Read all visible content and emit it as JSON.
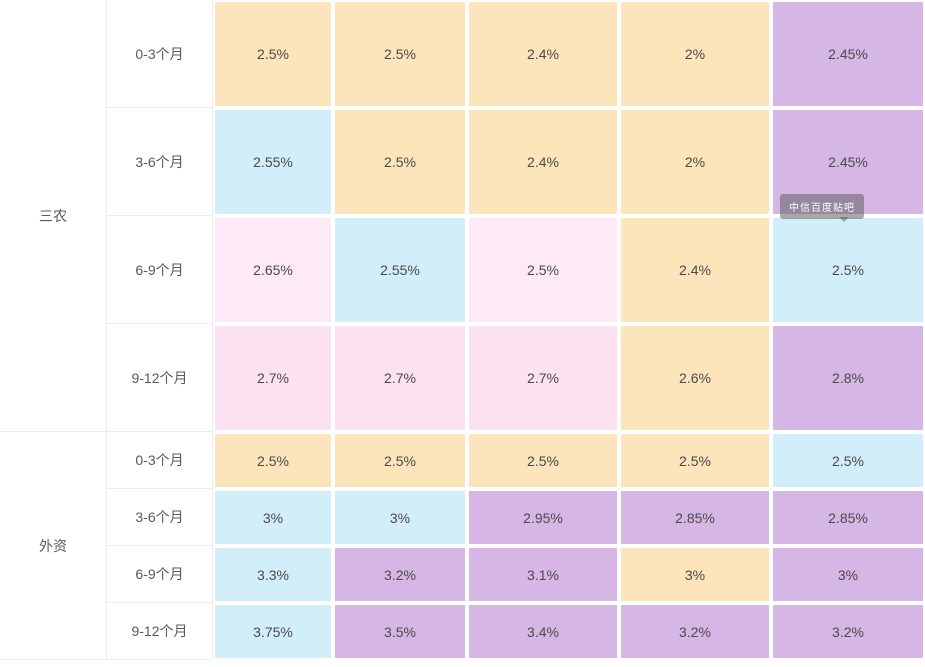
{
  "colors": {
    "orange": "#fce4bb",
    "blue": "#d2eefa",
    "pink": "#fce2f1",
    "pinkLight": "#fdeaf6",
    "purple": "#d5b6e4"
  },
  "watermark": {
    "text": "中信百度贴吧"
  },
  "chart_data": {
    "type": "table",
    "layout": "heatmap-style rate table, 2 row groups x 4 periods x 5 unlabeled columns",
    "groups": [
      {
        "label": "三农",
        "rows": [
          {
            "period": "0-3个月",
            "cells": [
              {
                "value": "2.5%",
                "color": "orange"
              },
              {
                "value": "2.5%",
                "color": "orange"
              },
              {
                "value": "2.4%",
                "color": "orange"
              },
              {
                "value": "2%",
                "color": "orange"
              },
              {
                "value": "2.45%",
                "color": "purple"
              }
            ]
          },
          {
            "period": "3-6个月",
            "cells": [
              {
                "value": "2.55%",
                "color": "blue"
              },
              {
                "value": "2.5%",
                "color": "orange"
              },
              {
                "value": "2.4%",
                "color": "orange"
              },
              {
                "value": "2%",
                "color": "orange"
              },
              {
                "value": "2.45%",
                "color": "purple"
              }
            ]
          },
          {
            "period": "6-9个月",
            "cells": [
              {
                "value": "2.65%",
                "color": "pinkLight"
              },
              {
                "value": "2.55%",
                "color": "blue"
              },
              {
                "value": "2.5%",
                "color": "pinkLight"
              },
              {
                "value": "2.4%",
                "color": "orange"
              },
              {
                "value": "2.5%",
                "color": "blue"
              }
            ]
          },
          {
            "period": "9-12个月",
            "cells": [
              {
                "value": "2.7%",
                "color": "pink"
              },
              {
                "value": "2.7%",
                "color": "pink"
              },
              {
                "value": "2.7%",
                "color": "pink"
              },
              {
                "value": "2.6%",
                "color": "orange"
              },
              {
                "value": "2.8%",
                "color": "purple"
              }
            ]
          }
        ]
      },
      {
        "label": "外资",
        "rows": [
          {
            "period": "0-3个月",
            "cells": [
              {
                "value": "2.5%",
                "color": "orange"
              },
              {
                "value": "2.5%",
                "color": "orange"
              },
              {
                "value": "2.5%",
                "color": "orange"
              },
              {
                "value": "2.5%",
                "color": "orange"
              },
              {
                "value": "2.5%",
                "color": "blue"
              }
            ]
          },
          {
            "period": "3-6个月",
            "cells": [
              {
                "value": "3%",
                "color": "blue"
              },
              {
                "value": "3%",
                "color": "blue"
              },
              {
                "value": "2.95%",
                "color": "purple"
              },
              {
                "value": "2.85%",
                "color": "purple"
              },
              {
                "value": "2.85%",
                "color": "purple"
              }
            ]
          },
          {
            "period": "6-9个月",
            "cells": [
              {
                "value": "3.3%",
                "color": "blue"
              },
              {
                "value": "3.2%",
                "color": "purple"
              },
              {
                "value": "3.1%",
                "color": "purple"
              },
              {
                "value": "3%",
                "color": "orange"
              },
              {
                "value": "3%",
                "color": "purple"
              }
            ]
          },
          {
            "period": "9-12个月",
            "cells": [
              {
                "value": "3.75%",
                "color": "blue"
              },
              {
                "value": "3.5%",
                "color": "purple"
              },
              {
                "value": "3.4%",
                "color": "purple"
              },
              {
                "value": "3.2%",
                "color": "purple"
              },
              {
                "value": "3.2%",
                "color": "purple"
              }
            ]
          }
        ]
      }
    ]
  }
}
